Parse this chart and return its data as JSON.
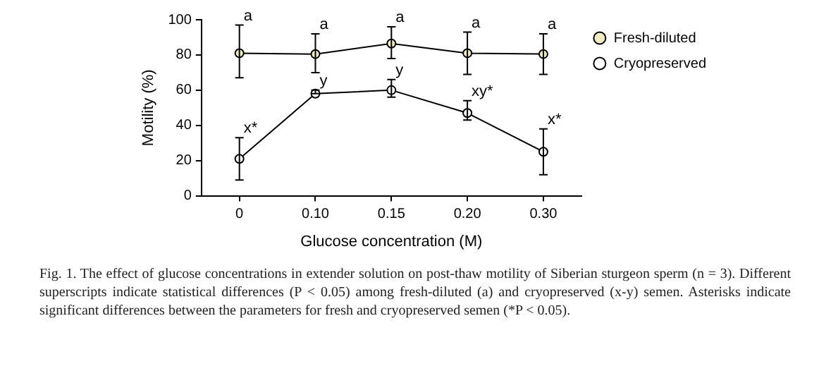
{
  "chart_data": {
    "type": "line",
    "xlabel": "Glucose concentration (M)",
    "ylabel": "Motility (%)",
    "categories": [
      "0",
      "0.10",
      "0.15",
      "0.20",
      "0.30"
    ],
    "series": [
      {
        "name": "Fresh-diluted",
        "color": "#000000",
        "values": [
          81,
          80.5,
          86.5,
          81,
          80.5
        ],
        "errors": [
          [
            67,
            97
          ],
          [
            70,
            92
          ],
          [
            78,
            96
          ],
          [
            69,
            93
          ],
          [
            69,
            92
          ]
        ]
      },
      {
        "name": "Cryopreserved",
        "color": "#000000",
        "values": [
          21,
          58,
          60,
          47,
          25
        ],
        "errors": [
          [
            9,
            33
          ],
          [
            58,
            60
          ],
          [
            56,
            66
          ],
          [
            43,
            54
          ],
          [
            12,
            38
          ]
        ]
      }
    ],
    "ylim": [
      0,
      100
    ],
    "yticks": [
      0,
      20,
      40,
      60,
      80,
      100
    ],
    "grid": false,
    "legend": "right",
    "marker": "circle",
    "line_style": "solid",
    "annotations": [
      {
        "text": "a",
        "x": "0",
        "y": 97
      },
      {
        "text": "a",
        "x": "0.10",
        "y": 92
      },
      {
        "text": "a",
        "x": "0.15",
        "y": 96
      },
      {
        "text": "a",
        "x": "0.20",
        "y": 93
      },
      {
        "text": "a",
        "x": "0.30",
        "y": 92
      },
      {
        "text": "x*",
        "x": "0",
        "y": 33
      },
      {
        "text": "y",
        "x": "0.10",
        "y": 60
      },
      {
        "text": "y",
        "x": "0.15",
        "y": 66
      },
      {
        "text": "xy*",
        "x": "0.20",
        "y": 54
      },
      {
        "text": "x*",
        "x": "0.30",
        "y": 38
      },
      "Fig. 1. The effect of glucose concentrations in extender solution on post-thaw motility of Siberian sturgeon sperm (n = 3). Different superscripts indicate statistical differences (P < 0.05) among fresh-diluted (a) and cryopreserved (x-y) semen. Asterisks indicate significant differences between the parameters for fresh and cryopreserved semen (*P < 0.05)."
    ]
  }
}
